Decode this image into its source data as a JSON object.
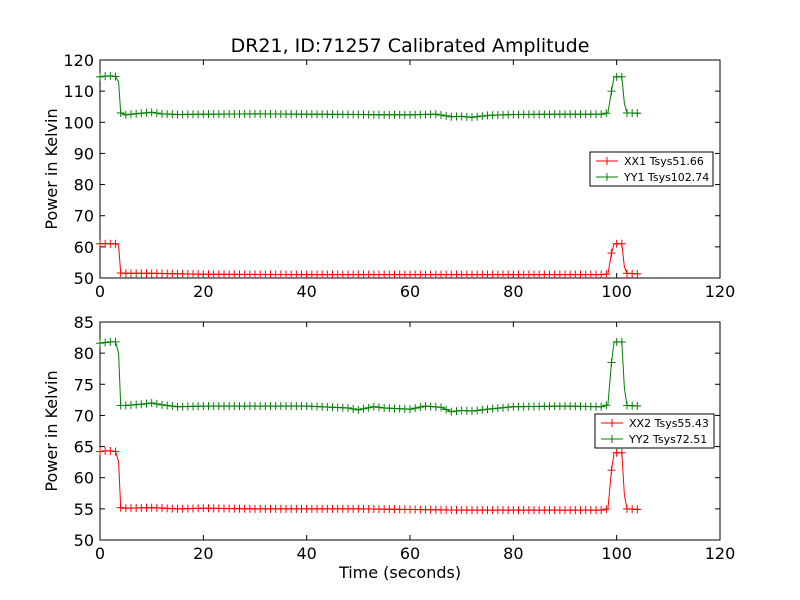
{
  "title": "DR21, ID:71257 Calibrated Amplitude",
  "chart_data": [
    {
      "type": "line",
      "title": "DR21, ID:71257 Calibrated Amplitude",
      "xlabel": "",
      "ylabel": "Power in Kelvin",
      "xlim": [
        0,
        120
      ],
      "ylim": [
        50,
        120
      ],
      "xticks": [
        0,
        20,
        40,
        60,
        80,
        100,
        120
      ],
      "yticks": [
        50,
        60,
        70,
        80,
        90,
        100,
        110,
        120
      ],
      "legend_position": "center-right",
      "series": [
        {
          "name": "XX1 Tsys51.66",
          "color": "#ff0000",
          "points": [
            [
              0,
              61
            ],
            [
              1,
              61
            ],
            [
              2,
              61
            ],
            [
              3,
              61
            ],
            [
              3.6,
              60.5
            ],
            [
              4,
              51.6
            ],
            [
              5,
              51.5
            ],
            [
              10,
              51.5
            ],
            [
              20,
              51.2
            ],
            [
              40,
              51.1
            ],
            [
              60,
              51.1
            ],
            [
              80,
              51.1
            ],
            [
              97,
              51.1
            ],
            [
              98.3,
              51.3
            ],
            [
              99,
              58
            ],
            [
              99.5,
              61
            ],
            [
              101,
              61
            ],
            [
              101.5,
              53.5
            ],
            [
              102,
              51.5
            ],
            [
              104.5,
              51.3
            ]
          ]
        },
        {
          "name": "YY1 Tsys102.74",
          "color": "#008000",
          "points": [
            [
              0,
              114.6
            ],
            [
              1,
              114.8
            ],
            [
              2,
              114.9
            ],
            [
              3,
              114.7
            ],
            [
              3.6,
              113
            ],
            [
              4,
              103
            ],
            [
              5,
              102.4
            ],
            [
              8,
              102.9
            ],
            [
              10,
              103.2
            ],
            [
              12,
              102.7
            ],
            [
              15,
              102.5
            ],
            [
              20,
              102.6
            ],
            [
              30,
              102.7
            ],
            [
              40,
              102.6
            ],
            [
              50,
              102.5
            ],
            [
              55,
              102.4
            ],
            [
              60,
              102.4
            ],
            [
              65,
              102.6
            ],
            [
              68,
              101.8
            ],
            [
              70,
              101.9
            ],
            [
              72,
              101.6
            ],
            [
              75,
              102.2
            ],
            [
              80,
              102.5
            ],
            [
              90,
              102.6
            ],
            [
              97,
              102.6
            ],
            [
              98.3,
              103
            ],
            [
              99,
              110
            ],
            [
              99.5,
              114.6
            ],
            [
              101,
              114.6
            ],
            [
              101.5,
              106
            ],
            [
              102,
              103
            ],
            [
              104.5,
              102.9
            ]
          ]
        }
      ]
    },
    {
      "type": "line",
      "title": "",
      "xlabel": "Time (seconds)",
      "ylabel": "Power in Kelvin",
      "xlim": [
        0,
        120
      ],
      "ylim": [
        50,
        85
      ],
      "xticks": [
        0,
        20,
        40,
        60,
        80,
        100,
        120
      ],
      "yticks": [
        50,
        55,
        60,
        65,
        70,
        75,
        80,
        85
      ],
      "legend_position": "center-right",
      "series": [
        {
          "name": "XX2 Tsys55.43",
          "color": "#ff0000",
          "points": [
            [
              0,
              64.2
            ],
            [
              1,
              64.3
            ],
            [
              2,
              64.3
            ],
            [
              3,
              64.2
            ],
            [
              3.6,
              62.6
            ],
            [
              4,
              55.2
            ],
            [
              5,
              55.1
            ],
            [
              10,
              55.2
            ],
            [
              15,
              55
            ],
            [
              20,
              55.1
            ],
            [
              30,
              55
            ],
            [
              40,
              55
            ],
            [
              50,
              55
            ],
            [
              60,
              54.9
            ],
            [
              70,
              54.8
            ],
            [
              80,
              54.8
            ],
            [
              97,
              54.8
            ],
            [
              98.3,
              55
            ],
            [
              99,
              61.2
            ],
            [
              99.5,
              64
            ],
            [
              101,
              64
            ],
            [
              101.5,
              57.2
            ],
            [
              102,
              55
            ],
            [
              104.5,
              54.9
            ]
          ]
        },
        {
          "name": "YY2 Tsys72.51",
          "color": "#008000",
          "points": [
            [
              0,
              81.6
            ],
            [
              1,
              81.7
            ],
            [
              2,
              81.8
            ],
            [
              3,
              81.8
            ],
            [
              3.6,
              80
            ],
            [
              4,
              71.6
            ],
            [
              5,
              71.6
            ],
            [
              8,
              71.8
            ],
            [
              10,
              72
            ],
            [
              12,
              71.7
            ],
            [
              15,
              71.4
            ],
            [
              20,
              71.5
            ],
            [
              30,
              71.5
            ],
            [
              40,
              71.5
            ],
            [
              48,
              71.2
            ],
            [
              50,
              70.9
            ],
            [
              53,
              71.4
            ],
            [
              55,
              71.2
            ],
            [
              60,
              71
            ],
            [
              63,
              71.5
            ],
            [
              66,
              71.3
            ],
            [
              68,
              70.6
            ],
            [
              70,
              70.8
            ],
            [
              72,
              70.7
            ],
            [
              75,
              71
            ],
            [
              80,
              71.4
            ],
            [
              90,
              71.5
            ],
            [
              97,
              71.4
            ],
            [
              98.3,
              71.7
            ],
            [
              99,
              78.5
            ],
            [
              99.5,
              81.8
            ],
            [
              101,
              81.8
            ],
            [
              101.5,
              74.4
            ],
            [
              102,
              71.6
            ],
            [
              104.5,
              71.5
            ]
          ]
        }
      ]
    }
  ]
}
